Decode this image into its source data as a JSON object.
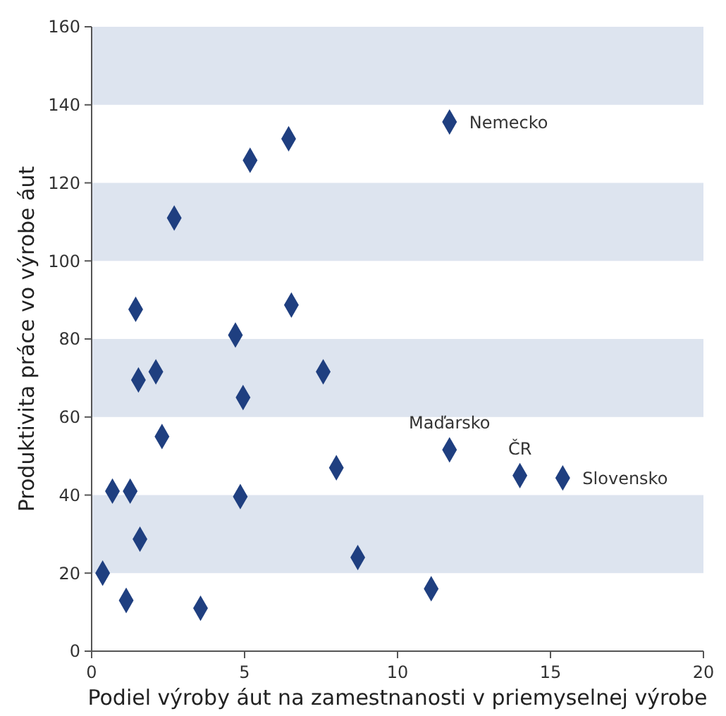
{
  "chart_data": {
    "type": "scatter",
    "xlabel": "Podiel výroby áut na zamestnanosti v priemyselnej  výrobe",
    "ylabel": "Produktivita práce vo výrobe áut",
    "marker": "diamond",
    "grid": false,
    "xlim": [
      0,
      20
    ],
    "xticks": [
      0,
      5,
      10,
      15,
      20
    ],
    "ylim": [
      0,
      160
    ],
    "yticks": [
      0,
      20,
      40,
      60,
      80,
      100,
      120,
      140,
      160
    ],
    "bands": [
      {
        "axis": "y",
        "from": 20,
        "to": 40,
        "color": "#dde4ef"
      },
      {
        "axis": "y",
        "from": 60,
        "to": 80,
        "color": "#dde4ef"
      },
      {
        "axis": "y",
        "from": 100,
        "to": 120,
        "color": "#dde4ef"
      },
      {
        "axis": "y",
        "from": 140,
        "to": 160,
        "color": "#dde4ef"
      }
    ],
    "series": [
      {
        "color": "#1f3f80",
        "x": [
          0.36,
          0.68,
          1.13,
          1.26,
          1.44,
          1.53,
          1.58,
          2.1,
          2.3,
          2.7,
          3.56,
          4.7,
          4.86,
          4.95,
          5.18,
          6.44,
          6.53,
          7.57,
          8.0,
          8.7,
          11.1,
          11.7,
          11.7,
          14.0,
          15.4
        ],
        "values": [
          20,
          41,
          13,
          41,
          87.6,
          69.5,
          28.7,
          71.6,
          55,
          111,
          11,
          81,
          39.6,
          65,
          125.8,
          131.3,
          88.7,
          71.6,
          47,
          24,
          16,
          135.6,
          51.6,
          45,
          44.4
        ]
      }
    ],
    "annotations": [
      {
        "text": "Nemecko",
        "x": 11.7,
        "y": 135.6
      },
      {
        "text": "Maďarsko",
        "x": 11.7,
        "y": 51.6
      },
      {
        "text": "ČR",
        "x": 14.0,
        "y": 45
      },
      {
        "text": "Slovensko",
        "x": 15.4,
        "y": 44.4
      }
    ]
  }
}
